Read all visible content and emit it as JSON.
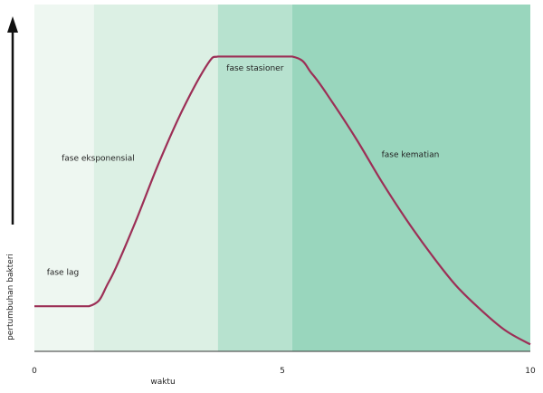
{
  "chart_data": {
    "type": "line",
    "title": "",
    "xlabel": "waktu",
    "ylabel": "pertumbuhan bakteri",
    "xlim": [
      0,
      10
    ],
    "ylim": [
      0,
      10
    ],
    "x_ticks": [
      "0",
      "5",
      "10"
    ],
    "grid": false,
    "phases": [
      {
        "name": "fase lag",
        "x_start": 0,
        "x_end": 1.2,
        "color": "#eef7f1"
      },
      {
        "name": "fase eksponensial",
        "x_start": 1.2,
        "x_end": 3.7,
        "color": "#dcf0e4"
      },
      {
        "name": "fase stasioner",
        "x_start": 3.7,
        "x_end": 5.2,
        "color": "#b7e2cf"
      },
      {
        "name": "fase kematian",
        "x_start": 5.2,
        "x_end": 10,
        "color": "#99d6bd"
      }
    ],
    "series": [
      {
        "color": "#9c2f56",
        "x": [
          0,
          1.1,
          1.5,
          2.0,
          2.5,
          3.0,
          3.5,
          3.7,
          4.0,
          5.2,
          5.6,
          6.0,
          6.5,
          7.0,
          7.5,
          8.0,
          8.5,
          9.0,
          9.5,
          10.0
        ],
        "y": [
          1.3,
          1.3,
          2.0,
          3.6,
          5.4,
          7.0,
          8.3,
          8.5,
          8.5,
          8.5,
          8.0,
          7.2,
          6.1,
          4.9,
          3.8,
          2.8,
          1.9,
          1.2,
          0.6,
          0.2
        ]
      }
    ]
  }
}
